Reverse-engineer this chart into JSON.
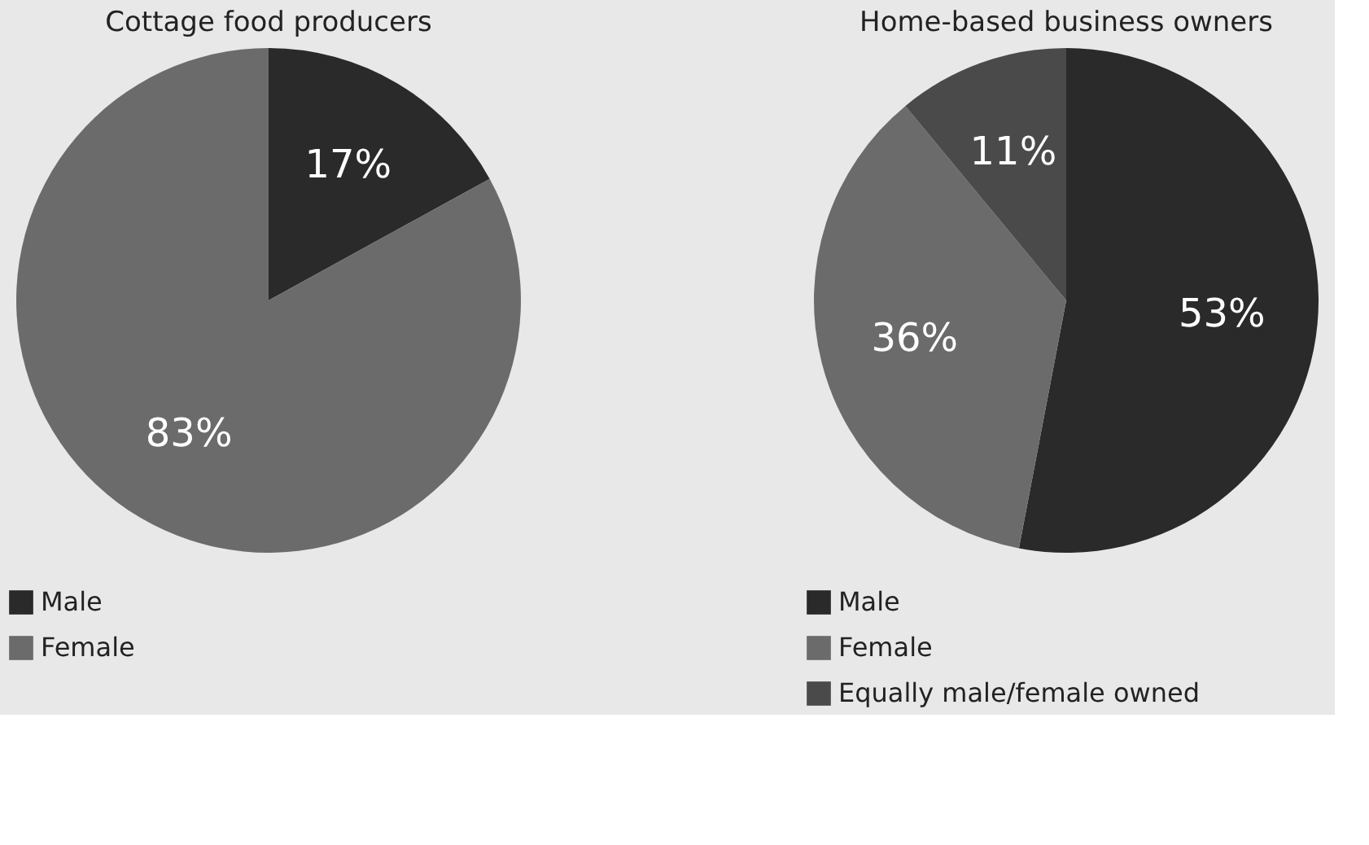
{
  "chart_data": [
    {
      "type": "pie",
      "title": "Cottage food producers",
      "categories": [
        "Male",
        "Female"
      ],
      "values": [
        17,
        83
      ],
      "colors": [
        "#2a2a2a",
        "#6b6b6b"
      ],
      "value_labels": [
        "17%",
        "83%"
      ],
      "legend": "bottom"
    },
    {
      "type": "pie",
      "title": "Home-based business owners",
      "categories": [
        "Male",
        "Female",
        "Equally male/female owned"
      ],
      "values": [
        53,
        36,
        11
      ],
      "colors": [
        "#2a2a2a",
        "#6b6b6b",
        "#4a4a4a"
      ],
      "value_labels": [
        "53%",
        "36%",
        "11%"
      ],
      "legend": "bottom"
    }
  ]
}
